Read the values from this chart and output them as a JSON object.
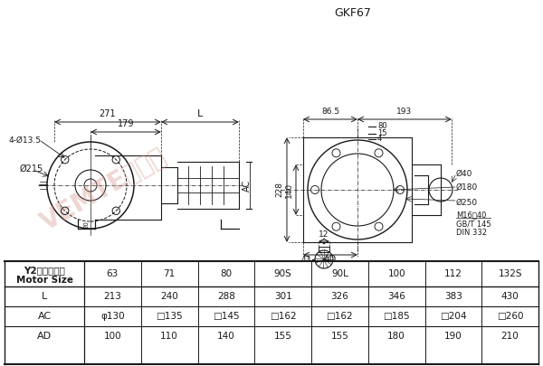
{
  "title": "GKF67",
  "bg_color": "#ffffff",
  "table_col_headers": [
    "63",
    "71",
    "80",
    "90S",
    "90L",
    "100",
    "112",
    "132S"
  ],
  "table_rows": [
    [
      "L",
      "213",
      "240",
      "288",
      "301",
      "326",
      "346",
      "383",
      "430"
    ],
    [
      "AC",
      "φ130",
      "□135",
      "□145",
      "□162",
      "□162",
      "□185",
      "□204",
      "□260"
    ],
    [
      "AD",
      "100",
      "110",
      "140",
      "155",
      "155",
      "180",
      "190",
      "210"
    ]
  ],
  "line_color": "#1a1a1a",
  "wm_color": "#d4968a",
  "wm_alpha": 0.38
}
